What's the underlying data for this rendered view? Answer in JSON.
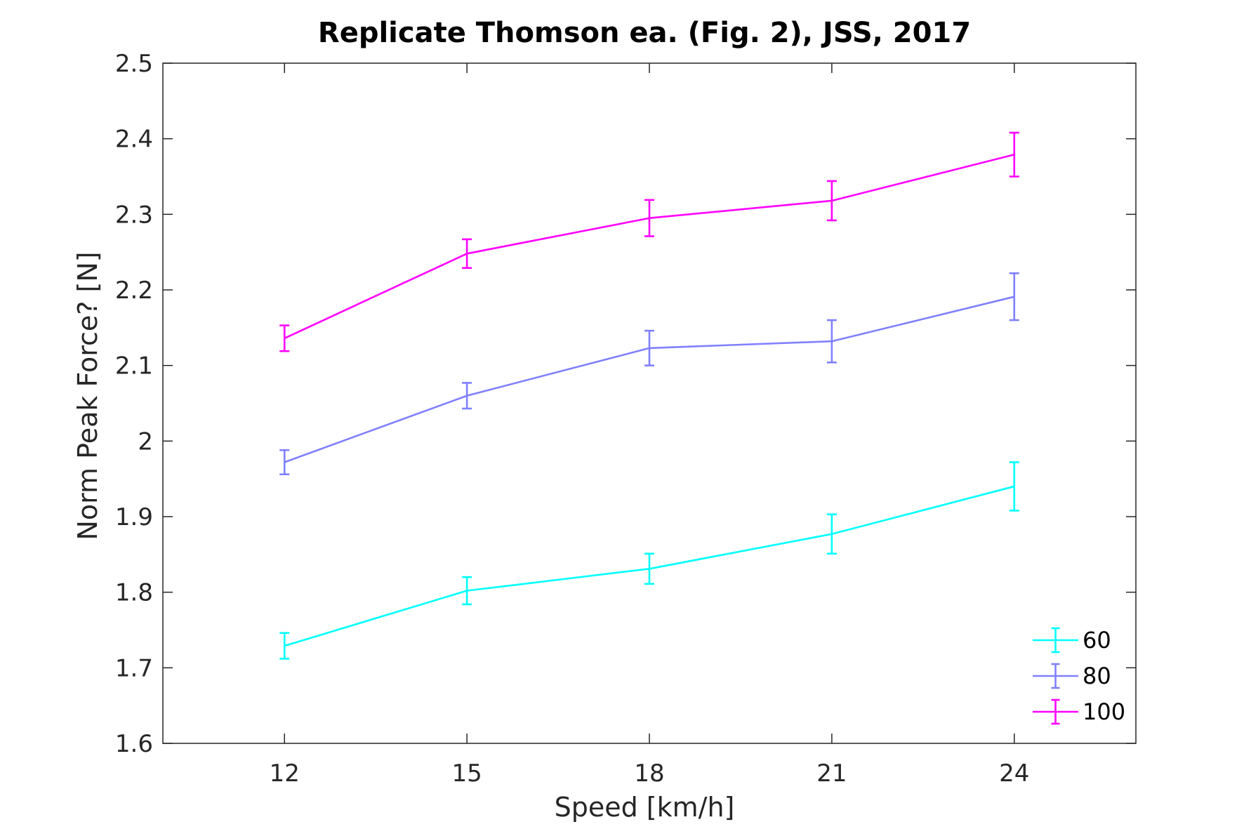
{
  "chart_data": {
    "type": "line",
    "title": "Replicate Thomson ea. (Fig. 2), JSS, 2017",
    "xlabel": "Speed [km/h]",
    "ylabel": "Norm Peak Force? [N]",
    "x": [
      12,
      15,
      18,
      21,
      24
    ],
    "xticks": [
      "12",
      "15",
      "18",
      "21",
      "24"
    ],
    "xlim": [
      10,
      26
    ],
    "ylim": [
      1.6,
      2.5
    ],
    "yticks": [
      "1.6",
      "1.7",
      "1.8",
      "1.9",
      "2",
      "2.1",
      "2.2",
      "2.3",
      "2.4",
      "2.5"
    ],
    "ytick_values": [
      1.6,
      1.7,
      1.8,
      1.9,
      2.0,
      2.1,
      2.2,
      2.3,
      2.4,
      2.5
    ],
    "grid": false,
    "legend_position": "bottom-right",
    "series": [
      {
        "name": "60",
        "color": "#00ffff",
        "values": [
          1.729,
          1.802,
          1.831,
          1.877,
          1.94
        ],
        "errors": [
          0.017,
          0.018,
          0.02,
          0.026,
          0.032
        ]
      },
      {
        "name": "80",
        "color": "#8080ff",
        "values": [
          1.972,
          2.06,
          2.123,
          2.132,
          2.191
        ],
        "errors": [
          0.016,
          0.017,
          0.023,
          0.028,
          0.031
        ]
      },
      {
        "name": "100",
        "color": "#ff00ff",
        "values": [
          2.136,
          2.248,
          2.295,
          2.318,
          2.379
        ],
        "errors": [
          0.017,
          0.019,
          0.024,
          0.026,
          0.029
        ]
      }
    ]
  }
}
